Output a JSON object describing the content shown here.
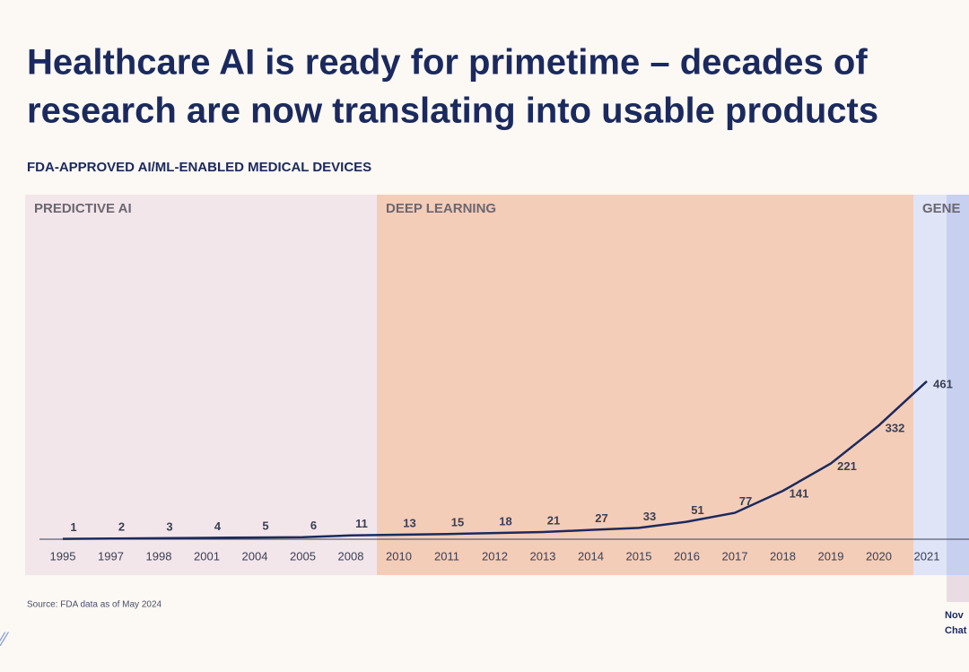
{
  "header": {
    "title_lines": [
      "Healthcare AI is ready for primetime – decades of",
      "research are now translating into usable products"
    ]
  },
  "chart_data": {
    "type": "line",
    "subtitle": "FDA-APPROVED AI/ML-ENABLED MEDICAL DEVICES",
    "phases": [
      "PREDICTIVE AI",
      "DEEP LEARNING",
      "GENE"
    ],
    "categories": [
      "1995",
      "1997",
      "1998",
      "2001",
      "2004",
      "2005",
      "2008",
      "2010",
      "2011",
      "2012",
      "2013",
      "2014",
      "2015",
      "2016",
      "2017",
      "2018",
      "2019",
      "2020",
      "2021"
    ],
    "series": [
      {
        "name": "Devices",
        "color": "#1b2a5e",
        "values": [
          1,
          2,
          3,
          4,
          5,
          6,
          11,
          13,
          15,
          18,
          21,
          27,
          33,
          51,
          77,
          141,
          221,
          332,
          461
        ]
      }
    ],
    "ylim": [
      0,
      1000
    ],
    "annotation": [
      "Nov",
      "Chat"
    ],
    "source": "Source: FDA data as of May 2024"
  }
}
